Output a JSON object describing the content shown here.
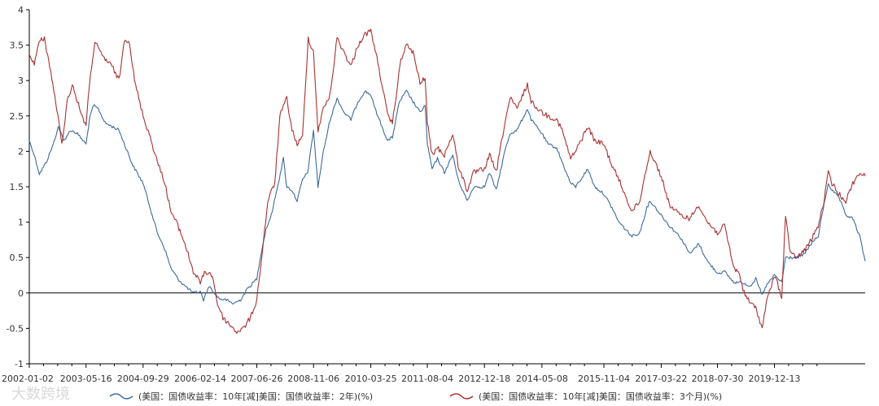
{
  "chart_data": {
    "type": "line",
    "title": "",
    "xlabel": "",
    "ylabel": "",
    "ylim": [
      -1,
      4
    ],
    "yticks": [
      "-1",
      "-0.5",
      "0",
      "0.5",
      "1",
      "1.5",
      "2",
      "2.5",
      "3",
      "3.5",
      "4"
    ],
    "xlim": [
      "2002-01-02",
      "2022-02-18"
    ],
    "xticks": [
      "2002-01-02",
      "2003-05-16",
      "2004-09-29",
      "2006-02-14",
      "2007-06-26",
      "2008-11-06",
      "2010-03-25",
      "2011-08-04",
      "2012-12-18",
      "2014-05-08",
      "2015-11-04",
      "2017-03-22",
      "2018-07-30",
      "2019-12-13"
    ],
    "zero_line": true,
    "grid": false,
    "legend_position": "bottom",
    "colors": {
      "series_a": "#3d6a9e",
      "series_b": "#a83232",
      "axis": "#000000"
    },
    "watermark": "大数跨境",
    "series": [
      {
        "name": "(美国：国债收益率：10年[减]美国：国债收益率：2年)(%)",
        "color": "#3d6a9e",
        "points": [
          [
            "2002-01-02",
            2.15
          ],
          [
            "2002-02-15",
            1.95
          ],
          [
            "2002-04-01",
            1.68
          ],
          [
            "2002-06-01",
            1.85
          ],
          [
            "2002-08-01",
            2.1
          ],
          [
            "2002-09-15",
            2.35
          ],
          [
            "2002-11-01",
            2.15
          ],
          [
            "2003-01-01",
            2.3
          ],
          [
            "2003-03-01",
            2.25
          ],
          [
            "2003-05-16",
            2.1
          ],
          [
            "2003-06-15",
            2.45
          ],
          [
            "2003-07-20",
            2.65
          ],
          [
            "2003-09-01",
            2.6
          ],
          [
            "2003-11-01",
            2.4
          ],
          [
            "2004-01-01",
            2.35
          ],
          [
            "2004-03-01",
            2.3
          ],
          [
            "2004-05-01",
            2.05
          ],
          [
            "2004-07-01",
            1.8
          ],
          [
            "2004-09-29",
            1.55
          ],
          [
            "2004-12-01",
            1.2
          ],
          [
            "2005-02-01",
            0.85
          ],
          [
            "2005-04-01",
            0.65
          ],
          [
            "2005-06-01",
            0.35
          ],
          [
            "2005-08-01",
            0.2
          ],
          [
            "2005-10-01",
            0.1
          ],
          [
            "2005-12-15",
            0.0
          ],
          [
            "2006-02-14",
            0.02
          ],
          [
            "2006-03-15",
            -0.1
          ],
          [
            "2006-05-01",
            0.1
          ],
          [
            "2006-06-15",
            0.0
          ],
          [
            "2006-08-01",
            -0.08
          ],
          [
            "2006-10-01",
            -0.1
          ],
          [
            "2006-12-01",
            -0.15
          ],
          [
            "2007-02-01",
            -0.1
          ],
          [
            "2007-04-01",
            0.05
          ],
          [
            "2007-06-26",
            0.2
          ],
          [
            "2007-08-01",
            0.55
          ],
          [
            "2007-09-15",
            0.9
          ],
          [
            "2007-11-01",
            1.1
          ],
          [
            "2008-01-01",
            1.55
          ],
          [
            "2008-02-15",
            1.9
          ],
          [
            "2008-03-15",
            1.5
          ],
          [
            "2008-05-01",
            1.45
          ],
          [
            "2008-06-15",
            1.3
          ],
          [
            "2008-08-01",
            1.6
          ],
          [
            "2008-09-15",
            1.7
          ],
          [
            "2008-11-06",
            2.3
          ],
          [
            "2008-12-15",
            1.5
          ],
          [
            "2009-02-01",
            2.0
          ],
          [
            "2009-04-01",
            2.45
          ],
          [
            "2009-06-01",
            2.75
          ],
          [
            "2009-08-01",
            2.55
          ],
          [
            "2009-10-01",
            2.45
          ],
          [
            "2009-12-01",
            2.7
          ],
          [
            "2010-02-01",
            2.85
          ],
          [
            "2010-03-25",
            2.8
          ],
          [
            "2010-05-01",
            2.6
          ],
          [
            "2010-07-01",
            2.35
          ],
          [
            "2010-08-20",
            2.15
          ],
          [
            "2010-10-01",
            2.2
          ],
          [
            "2010-12-01",
            2.7
          ],
          [
            "2011-02-01",
            2.85
          ],
          [
            "2011-04-01",
            2.7
          ],
          [
            "2011-06-01",
            2.55
          ],
          [
            "2011-07-15",
            2.65
          ],
          [
            "2011-08-04",
            2.1
          ],
          [
            "2011-09-15",
            1.75
          ],
          [
            "2011-11-01",
            1.9
          ],
          [
            "2012-01-01",
            1.7
          ],
          [
            "2012-03-15",
            1.95
          ],
          [
            "2012-05-01",
            1.6
          ],
          [
            "2012-07-20",
            1.3
          ],
          [
            "2012-09-15",
            1.5
          ],
          [
            "2012-12-18",
            1.5
          ],
          [
            "2013-02-01",
            1.7
          ],
          [
            "2013-04-01",
            1.45
          ],
          [
            "2013-06-15",
            2.0
          ],
          [
            "2013-08-01",
            2.25
          ],
          [
            "2013-10-01",
            2.3
          ],
          [
            "2013-12-31",
            2.6
          ],
          [
            "2014-02-01",
            2.45
          ],
          [
            "2014-05-08",
            2.25
          ],
          [
            "2014-07-01",
            2.1
          ],
          [
            "2014-09-15",
            2.05
          ],
          [
            "2014-11-01",
            1.85
          ],
          [
            "2015-01-15",
            1.55
          ],
          [
            "2015-03-01",
            1.5
          ],
          [
            "2015-06-15",
            1.75
          ],
          [
            "2015-08-15",
            1.5
          ],
          [
            "2015-11-04",
            1.4
          ],
          [
            "2016-01-15",
            1.2
          ],
          [
            "2016-03-15",
            1.0
          ],
          [
            "2016-07-08",
            0.8
          ],
          [
            "2016-09-15",
            0.85
          ],
          [
            "2016-11-15",
            1.2
          ],
          [
            "2016-12-15",
            1.3
          ],
          [
            "2017-03-22",
            1.1
          ],
          [
            "2017-06-01",
            0.95
          ],
          [
            "2017-09-01",
            0.8
          ],
          [
            "2017-12-01",
            0.55
          ],
          [
            "2018-02-15",
            0.7
          ],
          [
            "2018-05-01",
            0.45
          ],
          [
            "2018-07-30",
            0.28
          ],
          [
            "2018-10-01",
            0.3
          ],
          [
            "2018-12-20",
            0.15
          ],
          [
            "2019-03-01",
            0.15
          ],
          [
            "2019-05-15",
            0.1
          ],
          [
            "2019-07-01",
            0.2
          ],
          [
            "2019-08-27",
            -0.03
          ],
          [
            "2019-10-01",
            0.1
          ],
          [
            "2019-12-13",
            0.25
          ],
          [
            "2020-02-15",
            0.15
          ],
          [
            "2020-03-20",
            0.5
          ],
          [
            "2020-05-01",
            0.5
          ],
          [
            "2020-07-01",
            0.5
          ],
          [
            "2020-09-01",
            0.55
          ],
          [
            "2020-11-01",
            0.7
          ],
          [
            "2021-01-01",
            0.8
          ],
          [
            "2021-02-15",
            1.2
          ],
          [
            "2021-03-31",
            1.55
          ],
          [
            "2021-05-01",
            1.45
          ],
          [
            "2021-07-01",
            1.35
          ],
          [
            "2021-09-01",
            1.1
          ],
          [
            "2021-11-01",
            1.05
          ],
          [
            "2022-01-01",
            0.8
          ],
          [
            "2022-02-18",
            0.45
          ]
        ]
      },
      {
        "name": "(美国：国债收益率：10年[减]美国：国债收益率：3个月)(%)",
        "color": "#a83232",
        "points": [
          [
            "2002-01-02",
            3.35
          ],
          [
            "2002-02-15",
            3.25
          ],
          [
            "2002-04-01",
            3.55
          ],
          [
            "2002-05-15",
            3.6
          ],
          [
            "2002-07-01",
            3.2
          ],
          [
            "2002-09-01",
            2.6
          ],
          [
            "2002-10-15",
            2.1
          ],
          [
            "2002-12-01",
            2.7
          ],
          [
            "2003-01-15",
            2.95
          ],
          [
            "2003-03-01",
            2.7
          ],
          [
            "2003-05-16",
            2.35
          ],
          [
            "2003-06-15",
            2.95
          ],
          [
            "2003-08-01",
            3.55
          ],
          [
            "2003-09-15",
            3.4
          ],
          [
            "2003-11-01",
            3.3
          ],
          [
            "2004-01-01",
            3.2
          ],
          [
            "2004-03-01",
            3.0
          ],
          [
            "2004-04-20",
            3.6
          ],
          [
            "2004-06-01",
            3.55
          ],
          [
            "2004-07-15",
            3.0
          ],
          [
            "2004-09-29",
            2.5
          ],
          [
            "2004-12-01",
            2.2
          ],
          [
            "2005-02-01",
            1.85
          ],
          [
            "2005-04-01",
            1.6
          ],
          [
            "2005-06-01",
            1.15
          ],
          [
            "2005-08-01",
            0.95
          ],
          [
            "2005-10-01",
            0.7
          ],
          [
            "2005-12-15",
            0.3
          ],
          [
            "2006-02-14",
            0.15
          ],
          [
            "2006-04-01",
            0.3
          ],
          [
            "2006-06-01",
            0.25
          ],
          [
            "2006-07-15",
            -0.15
          ],
          [
            "2006-09-01",
            -0.35
          ],
          [
            "2006-11-01",
            -0.45
          ],
          [
            "2007-01-01",
            -0.55
          ],
          [
            "2007-03-01",
            -0.5
          ],
          [
            "2007-05-01",
            -0.35
          ],
          [
            "2007-06-26",
            -0.1
          ],
          [
            "2007-08-15",
            0.6
          ],
          [
            "2007-10-01",
            1.3
          ],
          [
            "2007-12-01",
            1.55
          ],
          [
            "2008-01-15",
            2.5
          ],
          [
            "2008-03-15",
            2.75
          ],
          [
            "2008-05-01",
            2.3
          ],
          [
            "2008-06-15",
            2.1
          ],
          [
            "2008-08-01",
            2.2
          ],
          [
            "2008-09-20",
            3.6
          ],
          [
            "2008-11-06",
            3.4
          ],
          [
            "2008-12-15",
            2.3
          ],
          [
            "2009-02-01",
            2.6
          ],
          [
            "2009-04-01",
            2.8
          ],
          [
            "2009-06-01",
            3.6
          ],
          [
            "2009-08-01",
            3.4
          ],
          [
            "2009-10-01",
            3.2
          ],
          [
            "2009-12-01",
            3.5
          ],
          [
            "2010-02-01",
            3.65
          ],
          [
            "2010-03-25",
            3.7
          ],
          [
            "2010-05-01",
            3.45
          ],
          [
            "2010-07-01",
            2.95
          ],
          [
            "2010-08-20",
            2.5
          ],
          [
            "2010-10-01",
            2.4
          ],
          [
            "2010-12-15",
            3.3
          ],
          [
            "2011-02-01",
            3.5
          ],
          [
            "2011-04-01",
            3.4
          ],
          [
            "2011-06-01",
            2.95
          ],
          [
            "2011-07-15",
            3.05
          ],
          [
            "2011-08-04",
            2.4
          ],
          [
            "2011-09-15",
            1.95
          ],
          [
            "2011-11-01",
            2.05
          ],
          [
            "2012-01-01",
            1.95
          ],
          [
            "2012-03-15",
            2.25
          ],
          [
            "2012-05-01",
            1.8
          ],
          [
            "2012-07-20",
            1.45
          ],
          [
            "2012-09-15",
            1.7
          ],
          [
            "2012-12-18",
            1.75
          ],
          [
            "2013-02-01",
            1.95
          ],
          [
            "2013-04-01",
            1.7
          ],
          [
            "2013-06-15",
            2.4
          ],
          [
            "2013-08-01",
            2.75
          ],
          [
            "2013-10-01",
            2.6
          ],
          [
            "2013-12-31",
            2.95
          ],
          [
            "2014-02-01",
            2.7
          ],
          [
            "2014-05-08",
            2.55
          ],
          [
            "2014-07-01",
            2.5
          ],
          [
            "2014-09-15",
            2.45
          ],
          [
            "2014-11-01",
            2.3
          ],
          [
            "2015-01-15",
            1.9
          ],
          [
            "2015-03-01",
            2.0
          ],
          [
            "2015-06-15",
            2.35
          ],
          [
            "2015-08-15",
            2.15
          ],
          [
            "2015-11-04",
            2.1
          ],
          [
            "2016-01-15",
            1.8
          ],
          [
            "2016-03-15",
            1.6
          ],
          [
            "2016-07-08",
            1.15
          ],
          [
            "2016-09-15",
            1.3
          ],
          [
            "2016-11-15",
            1.8
          ],
          [
            "2016-12-15",
            2.0
          ],
          [
            "2017-03-22",
            1.65
          ],
          [
            "2017-06-01",
            1.25
          ],
          [
            "2017-09-01",
            1.1
          ],
          [
            "2017-12-01",
            1.05
          ],
          [
            "2018-02-15",
            1.25
          ],
          [
            "2018-05-01",
            1.0
          ],
          [
            "2018-07-30",
            0.85
          ],
          [
            "2018-10-01",
            0.95
          ],
          [
            "2018-12-20",
            0.35
          ],
          [
            "2019-02-01",
            0.3
          ],
          [
            "2019-03-22",
            0.0
          ],
          [
            "2019-05-15",
            -0.15
          ],
          [
            "2019-07-01",
            -0.2
          ],
          [
            "2019-08-27",
            -0.5
          ],
          [
            "2019-10-01",
            -0.15
          ],
          [
            "2019-12-13",
            0.25
          ],
          [
            "2020-02-15",
            -0.05
          ],
          [
            "2020-03-20",
            1.1
          ],
          [
            "2020-05-01",
            0.55
          ],
          [
            "2020-07-01",
            0.5
          ],
          [
            "2020-09-01",
            0.6
          ],
          [
            "2020-11-01",
            0.75
          ],
          [
            "2021-01-01",
            0.95
          ],
          [
            "2021-02-15",
            1.25
          ],
          [
            "2021-03-31",
            1.7
          ],
          [
            "2021-05-01",
            1.55
          ],
          [
            "2021-07-01",
            1.4
          ],
          [
            "2021-09-01",
            1.3
          ],
          [
            "2021-11-01",
            1.55
          ],
          [
            "2022-01-01",
            1.7
          ],
          [
            "2022-02-18",
            1.65
          ]
        ]
      }
    ]
  }
}
